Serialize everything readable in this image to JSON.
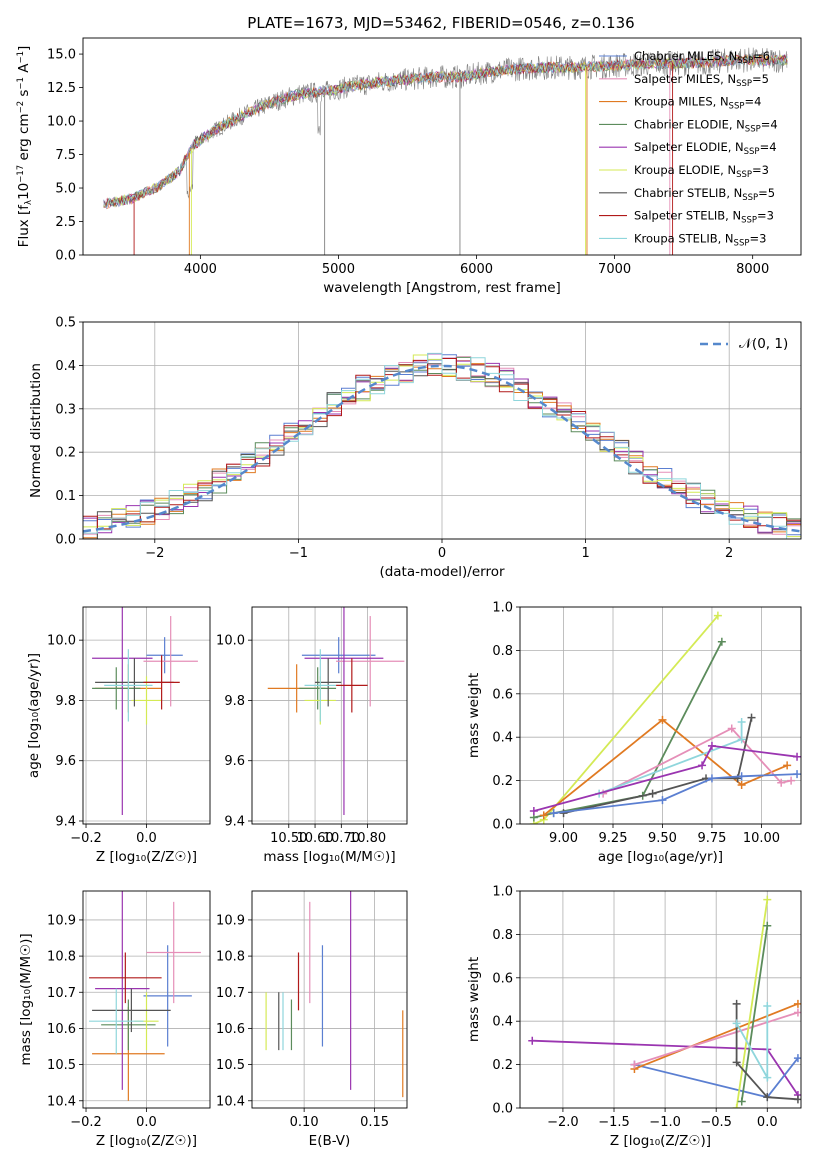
{
  "title": "PLATE=1673, MJD=53462, FIBERID=0546, z=0.136",
  "colors": {
    "Chabrier MILES": "#5b7fd1",
    "Salpeter MILES": "#e58fb8",
    "Kroupa MILES": "#e07a22",
    "Chabrier ELODIE": "#5c8c5c",
    "Salpeter ELODIE": "#9a35b0",
    "Kroupa ELODIE": "#d4ea55",
    "Chabrier STELIB": "#555555",
    "Salpeter STELIB": "#b11a1a",
    "Kroupa STELIB": "#8fd6dc",
    "data": "#808080",
    "gaussian": "#5588cc"
  },
  "chart_data": [
    {
      "id": "spectrum",
      "type": "line",
      "xlabel": "wavelength [Angstrom, rest frame]",
      "ylabel_parts": {
        "pre": "Flux [f",
        "sub1": "λ",
        "mid": "10",
        "sup1": "−17",
        "post": " erg cm",
        "sup2": "−2",
        "post2": " s",
        "sup3": "−1",
        "post3": " A",
        "sup4": "−1",
        "end": "]"
      },
      "xlim": [
        3150,
        8350
      ],
      "ylim": [
        0,
        16.2
      ],
      "xticks": [
        4000,
        5000,
        6000,
        7000,
        8000
      ],
      "yticks": [
        0.0,
        2.5,
        5.0,
        7.5,
        10.0,
        12.5,
        15.0
      ],
      "ytick_labels": [
        "0.0",
        "2.5",
        "5.0",
        "7.5",
        "10.0",
        "12.5",
        "15.0"
      ],
      "continuum": [
        [
          3300,
          3.8
        ],
        [
          3500,
          4.2
        ],
        [
          3700,
          5.1
        ],
        [
          3850,
          6.3
        ],
        [
          3950,
          8.2
        ],
        [
          4100,
          9.3
        ],
        [
          4300,
          10.4
        ],
        [
          4500,
          11.3
        ],
        [
          4700,
          12.0
        ],
        [
          4900,
          12.2
        ],
        [
          5100,
          12.6
        ],
        [
          5300,
          12.9
        ],
        [
          5500,
          13.1
        ],
        [
          5700,
          13.3
        ],
        [
          5900,
          13.3
        ],
        [
          6100,
          13.7
        ],
        [
          6300,
          13.9
        ],
        [
          6500,
          14.0
        ],
        [
          6700,
          14.0
        ],
        [
          6900,
          14.1
        ],
        [
          7100,
          14.2
        ],
        [
          7300,
          14.3
        ],
        [
          7500,
          14.3
        ],
        [
          7700,
          14.4
        ],
        [
          7900,
          14.6
        ],
        [
          8100,
          14.5
        ],
        [
          8250,
          14.6
        ]
      ],
      "legend": [
        {
          "name": "Chabrier MILES",
          "n": "6"
        },
        {
          "name": "Salpeter MILES",
          "n": "5"
        },
        {
          "name": "Kroupa MILES",
          "n": "4"
        },
        {
          "name": "Chabrier ELODIE",
          "n": "4"
        },
        {
          "name": "Salpeter ELODIE",
          "n": "4"
        },
        {
          "name": "Kroupa ELODIE",
          "n": "3"
        },
        {
          "name": "Chabrier STELIB",
          "n": "5"
        },
        {
          "name": "Salpeter STELIB",
          "n": "3"
        },
        {
          "name": "Kroupa STELIB",
          "n": "3"
        }
      ],
      "legend_sub": "SSP",
      "legend_prefix": "N",
      "grid": false
    },
    {
      "id": "residuals",
      "type": "step",
      "xlabel": "(data-model)/error",
      "ylabel": "Normed distribution",
      "xlim": [
        -2.5,
        2.5
      ],
      "ylim": [
        0,
        0.5
      ],
      "xticks": [
        -2,
        -1,
        0,
        1,
        2
      ],
      "xtick_labels": [
        "−2",
        "−1",
        "0",
        "1",
        "2"
      ],
      "yticks": [
        0.0,
        0.1,
        0.2,
        0.3,
        0.4,
        0.5
      ],
      "ytick_labels": [
        "0.0",
        "0.1",
        "0.2",
        "0.3",
        "0.4",
        "0.5"
      ],
      "legend_label": "𝒩(0, 1)",
      "grid": true
    },
    {
      "id": "z-age",
      "type": "errorbar",
      "xlabel": "Z [log₁₀(Z/Z☉)]",
      "ylabel": "age  [log₁₀(age/yr)]",
      "xlim": [
        -0.21,
        0.21
      ],
      "ylim": [
        9.39,
        10.11
      ],
      "xticks": [
        -0.2,
        0.0
      ],
      "xtick_labels": [
        "−0.2",
        "0.0"
      ],
      "yticks": [
        9.4,
        9.6,
        9.8,
        10.0
      ],
      "ytick_labels": [
        "9.4",
        "9.6",
        "9.8",
        "10.0"
      ],
      "points": [
        {
          "s": "Chabrier MILES",
          "x": 0.06,
          "y": 9.95,
          "xe": 0.06,
          "ye": 0.06
        },
        {
          "s": "Salpeter MILES",
          "x": 0.08,
          "y": 9.93,
          "xe": 0.09,
          "ye": 0.15
        },
        {
          "s": "Kroupa MILES",
          "x": -0.06,
          "y": 9.84,
          "xe": 0.11,
          "ye": 0.08
        },
        {
          "s": "Chabrier ELODIE",
          "x": -0.1,
          "y": 9.84,
          "xe": 0.08,
          "ye": 0.07
        },
        {
          "s": "Salpeter ELODIE",
          "x": -0.08,
          "y": 9.94,
          "xe": 0.1,
          "ye": 0.52
        },
        {
          "s": "Kroupa ELODIE",
          "x": 0.0,
          "y": 9.8,
          "xe": 0.05,
          "ye": 0.08
        },
        {
          "s": "Chabrier STELIB",
          "x": -0.04,
          "y": 9.86,
          "xe": 0.13,
          "ye": 0.08
        },
        {
          "s": "Salpeter STELIB",
          "x": 0.05,
          "y": 9.86,
          "xe": 0.06,
          "ye": 0.09
        },
        {
          "s": "Kroupa STELIB",
          "x": -0.06,
          "y": 9.85,
          "xe": 0.08,
          "ye": 0.12
        }
      ],
      "grid": true
    },
    {
      "id": "mass-age",
      "type": "errorbar",
      "xlabel": "mass [log₁₀(M/M☉)]",
      "xlim": [
        10.36,
        10.95
      ],
      "ylim": [
        9.39,
        10.11
      ],
      "xticks": [
        10.5,
        10.6,
        10.7,
        10.8
      ],
      "xtick_labels": [
        "10.50",
        "10.60",
        "10.70",
        "10.80"
      ],
      "yticks": [
        9.4,
        9.6,
        9.8,
        10.0
      ],
      "ytick_labels": [
        "9.4",
        "9.6",
        "9.8",
        "10.0"
      ],
      "points": [
        {
          "s": "Chabrier MILES",
          "x": 10.69,
          "y": 9.95,
          "xe": 0.14,
          "ye": 0.06
        },
        {
          "s": "Salpeter MILES",
          "x": 10.81,
          "y": 9.93,
          "xe": 0.13,
          "ye": 0.15
        },
        {
          "s": "Kroupa MILES",
          "x": 10.53,
          "y": 9.84,
          "xe": 0.11,
          "ye": 0.08
        },
        {
          "s": "Chabrier ELODIE",
          "x": 10.61,
          "y": 9.84,
          "xe": 0.07,
          "ye": 0.07
        },
        {
          "s": "Salpeter ELODIE",
          "x": 10.71,
          "y": 9.94,
          "xe": 0.15,
          "ye": 0.52
        },
        {
          "s": "Kroupa ELODIE",
          "x": 10.62,
          "y": 9.8,
          "xe": 0.06,
          "ye": 0.08
        },
        {
          "s": "Chabrier STELIB",
          "x": 10.65,
          "y": 9.86,
          "xe": 0.05,
          "ye": 0.08
        },
        {
          "s": "Salpeter STELIB",
          "x": 10.74,
          "y": 9.85,
          "xe": 0.06,
          "ye": 0.09
        },
        {
          "s": "Kroupa STELIB",
          "x": 10.62,
          "y": 9.85,
          "xe": 0.06,
          "ye": 0.12
        }
      ],
      "grid": true
    },
    {
      "id": "age-weight",
      "type": "line",
      "xlabel": "age  [log₁₀(age/yr)]",
      "ylabel": "mass weight",
      "xlim": [
        8.78,
        10.2
      ],
      "ylim": [
        0,
        1.0
      ],
      "xticks": [
        9.0,
        9.25,
        9.5,
        9.75,
        10.0
      ],
      "xtick_labels": [
        "9.00",
        "9.25",
        "9.50",
        "9.75",
        "10.00"
      ],
      "yticks": [
        0.0,
        0.2,
        0.4,
        0.6,
        0.8,
        1.0
      ],
      "ytick_labels": [
        "0.0",
        "0.2",
        "0.4",
        "0.6",
        "0.8",
        "1.0"
      ],
      "series": [
        {
          "s": "Kroupa ELODIE",
          "pts": [
            [
              8.85,
              0.0
            ],
            [
              8.9,
              0.02
            ],
            [
              9.78,
              0.96
            ]
          ]
        },
        {
          "s": "Chabrier ELODIE",
          "pts": [
            [
              8.85,
              0.03
            ],
            [
              8.95,
              0.05
            ],
            [
              9.4,
              0.13
            ],
            [
              9.8,
              0.84
            ]
          ]
        },
        {
          "s": "Kroupa MILES",
          "pts": [
            [
              8.9,
              0.04
            ],
            [
              9.5,
              0.48
            ],
            [
              9.9,
              0.18
            ],
            [
              10.13,
              0.27
            ]
          ]
        },
        {
          "s": "Salpeter MILES",
          "pts": [
            [
              9.2,
              0.14
            ],
            [
              9.85,
              0.44
            ],
            [
              10.1,
              0.19
            ],
            [
              10.15,
              0.2
            ]
          ]
        },
        {
          "s": "Kroupa STELIB",
          "pts": [
            [
              9.18,
              0.14
            ],
            [
              9.9,
              0.39
            ],
            [
              9.9,
              0.47
            ]
          ]
        },
        {
          "s": "Chabrier STELIB",
          "pts": [
            [
              9.0,
              0.05
            ],
            [
              9.45,
              0.14
            ],
            [
              9.72,
              0.21
            ],
            [
              9.88,
              0.21
            ],
            [
              9.95,
              0.49
            ]
          ]
        },
        {
          "s": "Salpeter ELODIE",
          "pts": [
            [
              8.85,
              0.06
            ],
            [
              9.7,
              0.27
            ],
            [
              9.75,
              0.36
            ],
            [
              10.18,
              0.31
            ]
          ]
        },
        {
          "s": "Chabrier MILES",
          "pts": [
            [
              8.95,
              0.05
            ],
            [
              9.5,
              0.11
            ],
            [
              9.75,
              0.21
            ],
            [
              9.9,
              0.22
            ],
            [
              10.18,
              0.23
            ]
          ]
        }
      ],
      "grid": true
    },
    {
      "id": "z-mass",
      "type": "errorbar",
      "xlabel": "Z [log₁₀(Z/Z☉)]",
      "ylabel": "mass [log₁₀(M/M☉)]",
      "xlim": [
        -0.21,
        0.21
      ],
      "ylim": [
        10.38,
        10.98
      ],
      "xticks": [
        -0.2,
        0.0
      ],
      "xtick_labels": [
        "−0.2",
        "0.0"
      ],
      "yticks": [
        10.4,
        10.5,
        10.6,
        10.7,
        10.8,
        10.9
      ],
      "ytick_labels": [
        "10.4",
        "10.5",
        "10.6",
        "10.7",
        "10.8",
        "10.9"
      ],
      "points": [
        {
          "s": "Chabrier MILES",
          "x": 0.07,
          "y": 10.69,
          "xe": 0.08,
          "ye": 0.14
        },
        {
          "s": "Salpeter MILES",
          "x": 0.09,
          "y": 10.81,
          "xe": 0.09,
          "ye": 0.14
        },
        {
          "s": "Kroupa MILES",
          "x": -0.06,
          "y": 10.53,
          "xe": 0.12,
          "ye": 0.13
        },
        {
          "s": "Chabrier ELODIE",
          "x": -0.06,
          "y": 10.61,
          "xe": 0.09,
          "ye": 0.07
        },
        {
          "s": "Salpeter ELODIE",
          "x": -0.08,
          "y": 10.71,
          "xe": 0.09,
          "ye": 0.28
        },
        {
          "s": "Kroupa ELODIE",
          "x": 0.0,
          "y": 10.62,
          "xe": 0.04,
          "ye": 0.08
        },
        {
          "s": "Chabrier STELIB",
          "x": -0.05,
          "y": 10.65,
          "xe": 0.13,
          "ye": 0.06
        },
        {
          "s": "Salpeter STELIB",
          "x": -0.07,
          "y": 10.74,
          "xe": 0.12,
          "ye": 0.07
        },
        {
          "s": "Kroupa STELIB",
          "x": -0.1,
          "y": 10.62,
          "xe": 0.09,
          "ye": 0.09
        }
      ],
      "grid": true
    },
    {
      "id": "ebv-mass",
      "type": "errorbar",
      "xlabel": "E(B-V)",
      "xlim": [
        0.063,
        0.173
      ],
      "ylim": [
        10.38,
        10.98
      ],
      "xticks": [
        0.1,
        0.15
      ],
      "xtick_labels": [
        "0.10",
        "0.15"
      ],
      "yticks": [
        10.4,
        10.5,
        10.6,
        10.7,
        10.8,
        10.9
      ],
      "ytick_labels": [
        "10.4",
        "10.5",
        "10.6",
        "10.7",
        "10.8",
        "10.9"
      ],
      "points": [
        {
          "s": "Chabrier MILES",
          "x": 0.113,
          "y": 10.69,
          "xe": 0,
          "ye": 0.14
        },
        {
          "s": "Salpeter MILES",
          "x": 0.104,
          "y": 10.81,
          "xe": 0,
          "ye": 0.14
        },
        {
          "s": "Kroupa MILES",
          "x": 0.17,
          "y": 10.53,
          "xe": 0,
          "ye": 0.12
        },
        {
          "s": "Chabrier ELODIE",
          "x": 0.091,
          "y": 10.61,
          "xe": 0,
          "ye": 0.07
        },
        {
          "s": "Salpeter ELODIE",
          "x": 0.133,
          "y": 10.71,
          "xe": 0,
          "ye": 0.28
        },
        {
          "s": "Kroupa ELODIE",
          "x": 0.073,
          "y": 10.62,
          "xe": 0,
          "ye": 0.08
        },
        {
          "s": "Chabrier STELIB",
          "x": 0.082,
          "y": 10.62,
          "xe": 0,
          "ye": 0.08
        },
        {
          "s": "Salpeter STELIB",
          "x": 0.096,
          "y": 10.73,
          "xe": 0,
          "ye": 0.08
        },
        {
          "s": "Kroupa STELIB",
          "x": 0.085,
          "y": 10.62,
          "xe": 0,
          "ye": 0.08
        }
      ],
      "grid": true
    },
    {
      "id": "z-weight",
      "type": "line",
      "xlabel": "Z [log₁₀(Z/Z☉)]",
      "ylabel": "mass weight",
      "xlim": [
        -2.42,
        0.33
      ],
      "ylim": [
        0,
        1.0
      ],
      "xticks": [
        -2.0,
        -1.5,
        -1.0,
        -0.5,
        0.0
      ],
      "xtick_labels": [
        "−2.0",
        "−1.5",
        "−1.0",
        "−0.5",
        "0.0"
      ],
      "yticks": [
        0.0,
        0.2,
        0.4,
        0.6,
        0.8,
        1.0
      ],
      "ytick_labels": [
        "0.0",
        "0.2",
        "0.4",
        "0.6",
        "0.8",
        "1.0"
      ],
      "series": [
        {
          "s": "Salpeter ELODIE",
          "pts": [
            [
              -2.3,
              0.31
            ],
            [
              0.0,
              0.27
            ],
            [
              0.3,
              0.06
            ]
          ]
        },
        {
          "s": "Chabrier MILES",
          "pts": [
            [
              -1.3,
              0.2
            ],
            [
              0.0,
              0.05
            ],
            [
              0.3,
              0.23
            ]
          ]
        },
        {
          "s": "Kroupa MILES",
          "pts": [
            [
              -1.3,
              0.18
            ],
            [
              0.3,
              0.48
            ]
          ]
        },
        {
          "s": "Salpeter MILES",
          "pts": [
            [
              -1.3,
              0.2
            ],
            [
              0.3,
              0.44
            ]
          ]
        },
        {
          "s": "Kroupa ELODIE",
          "pts": [
            [
              -0.3,
              0.0
            ],
            [
              0.0,
              0.96
            ]
          ]
        },
        {
          "s": "Chabrier ELODIE",
          "pts": [
            [
              -0.25,
              0.03
            ],
            [
              0.0,
              0.84
            ]
          ]
        },
        {
          "s": "Chabrier STELIB",
          "pts": [
            [
              -0.3,
              0.48
            ],
            [
              -0.3,
              0.21
            ],
            [
              0.0,
              0.05
            ],
            [
              0.3,
              0.04
            ]
          ]
        },
        {
          "s": "Kroupa STELIB",
          "pts": [
            [
              -0.3,
              0.39
            ],
            [
              0.0,
              0.14
            ],
            [
              0.0,
              0.47
            ]
          ]
        }
      ],
      "grid": true
    }
  ]
}
